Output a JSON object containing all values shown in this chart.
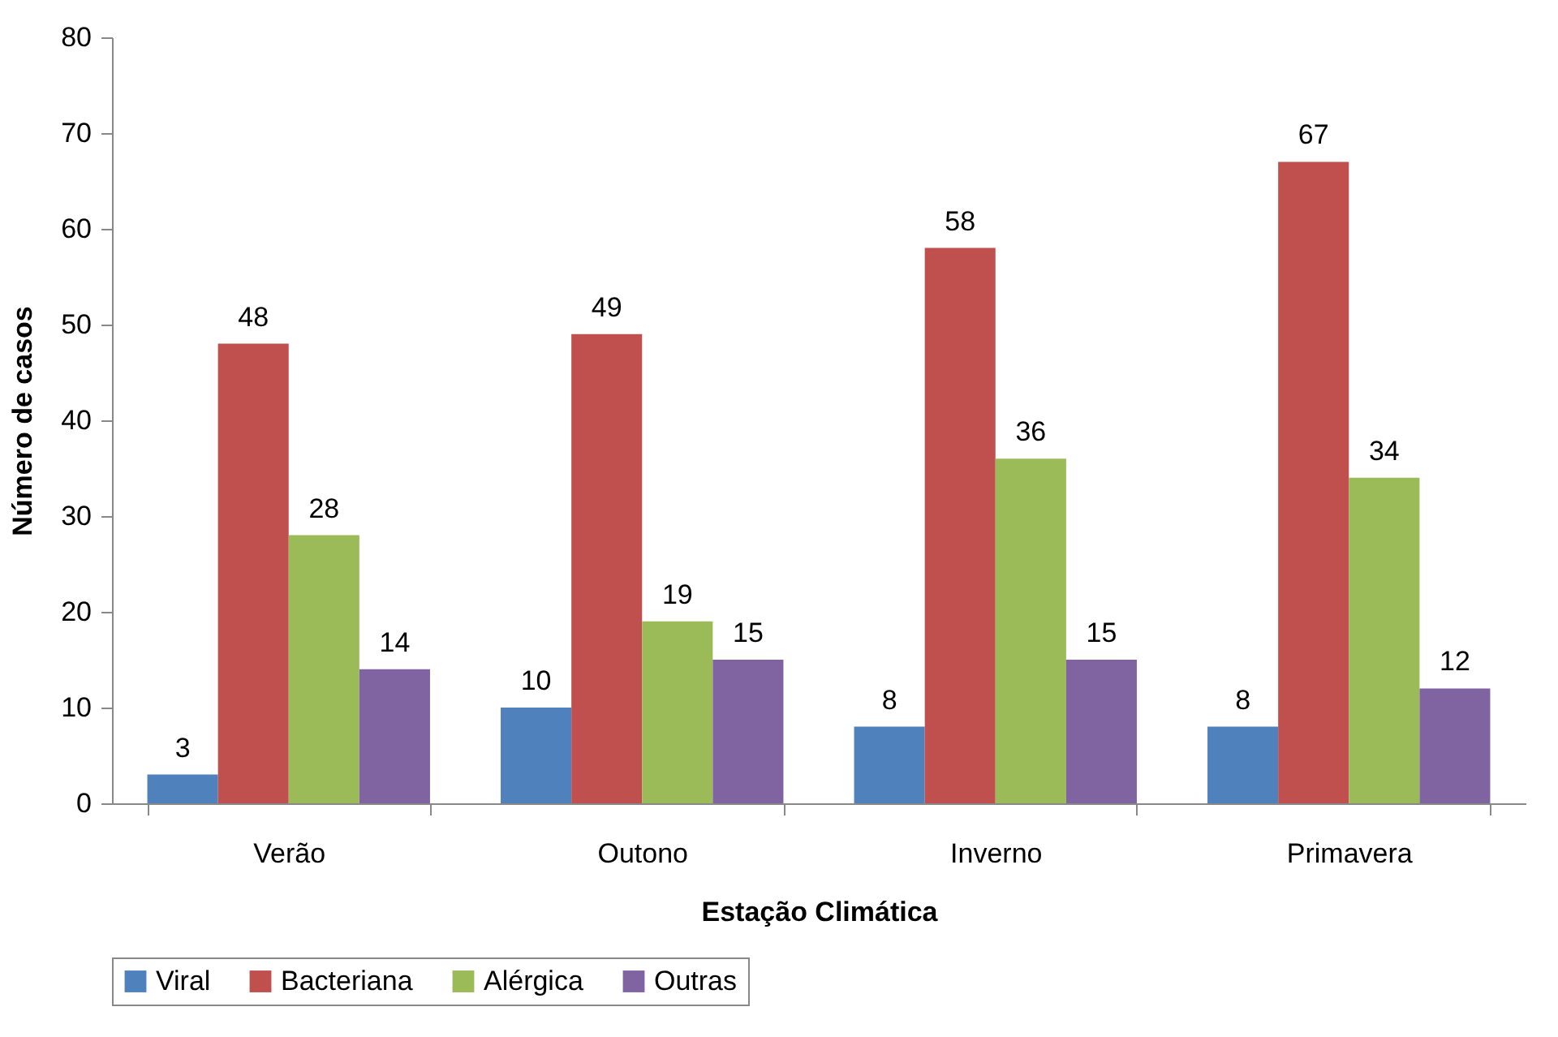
{
  "chart_data": {
    "type": "bar",
    "xlabel": "Estação Climática",
    "ylabel": "Número de casos",
    "categories": [
      "Verão",
      "Outono",
      "Inverno",
      "Primavera"
    ],
    "series": [
      {
        "name": "Viral",
        "color": "#4f81bd",
        "values": [
          3,
          10,
          8,
          8
        ]
      },
      {
        "name": "Bacteriana",
        "color": "#c0504d",
        "values": [
          48,
          49,
          58,
          67
        ]
      },
      {
        "name": "Alérgica",
        "color": "#9bbb59",
        "values": [
          28,
          19,
          36,
          34
        ]
      },
      {
        "name": "Outras",
        "color": "#8064a2",
        "values": [
          14,
          15,
          15,
          12
        ]
      }
    ],
    "ylim": [
      0,
      80
    ],
    "yticks": [
      0,
      10,
      20,
      30,
      40,
      50,
      60,
      70,
      80
    ],
    "grid": false,
    "legend": "bottom",
    "data_labels": true
  }
}
